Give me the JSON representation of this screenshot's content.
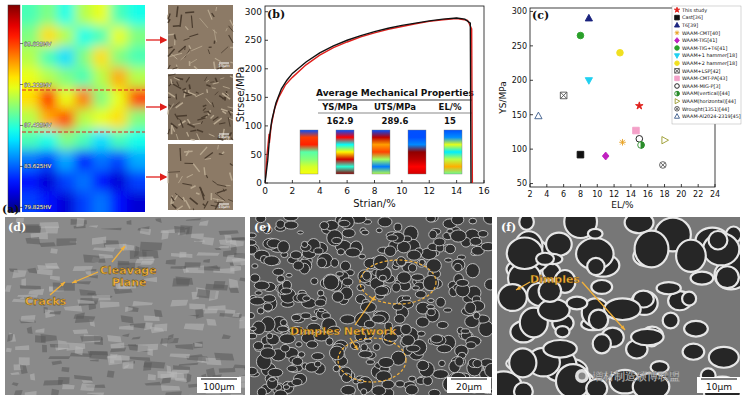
{
  "figure": {
    "panel_labels": [
      "(a)",
      "(b)",
      "(c)",
      "(d)",
      "(e)",
      "(f)"
    ],
    "a": {
      "colorbar": {
        "range": [
          79.4,
          98.6
        ],
        "ticks": [
          {
            "value": 95.025,
            "label": "95.025HV"
          },
          {
            "value": 91.225,
            "label": "91.225HV"
          },
          {
            "value": 87.425,
            "label": "87.425HV"
          },
          {
            "value": 83.625,
            "label": "83.625HV"
          },
          {
            "value": 79.825,
            "label": "79.825HV"
          }
        ]
      },
      "hardness": [
        [
          88,
          89,
          87,
          90,
          91,
          88,
          87
        ],
        [
          89,
          92,
          90,
          87,
          88,
          91,
          89
        ],
        [
          90,
          88,
          86,
          89,
          92,
          89,
          88
        ],
        [
          91,
          90,
          89,
          88,
          90,
          93,
          90
        ],
        [
          92,
          96,
          91,
          94,
          89,
          91,
          95
        ],
        [
          90,
          93,
          95,
          90,
          91,
          92,
          89
        ],
        [
          88,
          87,
          89,
          88,
          86,
          88,
          87
        ],
        [
          84,
          83,
          85,
          82,
          84,
          83,
          85
        ],
        [
          82,
          81,
          83,
          84,
          82,
          81,
          83
        ],
        [
          83,
          82,
          81,
          83,
          84,
          82,
          81
        ]
      ],
      "scale_bars": [
        "10μm",
        "10μm",
        "10μm"
      ]
    },
    "d": {
      "annotations": [
        "Cracks",
        "Cleavage Plane"
      ],
      "scale_bar": "100μm"
    },
    "e": {
      "annotations": [
        "Dimples Network"
      ],
      "scale_bar": "20μm"
    },
    "f": {
      "annotations": [
        "Dimples"
      ],
      "scale_bar": "10μm"
    },
    "watermark": "增材制造硕博联盟"
  },
  "chart_data": [
    {
      "type": "line",
      "x_label": "Strian/%",
      "y_label": "Strsee/MPa",
      "xlim": [
        0,
        16
      ],
      "xticks": [
        0,
        2,
        4,
        6,
        8,
        10,
        12,
        14,
        16
      ],
      "ylim": [
        0,
        310
      ],
      "yticks": [
        0,
        50,
        100,
        150,
        200,
        250,
        300
      ],
      "series": [
        {
          "color": "#e0201c",
          "x": [
            0,
            0.15,
            0.3,
            0.32,
            0.45,
            0.7,
            1,
            1.5,
            2,
            3,
            4,
            5,
            6,
            7,
            8,
            9,
            10,
            11,
            12,
            13,
            14,
            14.8,
            15.1,
            15.15
          ],
          "values": [
            0,
            50,
            86,
            70,
            100,
            130,
            150,
            172,
            185,
            207,
            224,
            237,
            247,
            256,
            263,
            269,
            274,
            279,
            283,
            286,
            288,
            285,
            270,
            0
          ]
        },
        {
          "color": "#111111",
          "x": [
            0,
            0.2,
            0.35,
            0.5,
            0.8,
            1.2,
            1.6,
            2,
            3,
            4,
            5,
            6,
            7,
            8,
            9,
            10,
            11,
            12,
            13,
            14,
            14.6,
            15,
            15.05
          ],
          "values": [
            0,
            40,
            85,
            110,
            140,
            165,
            180,
            192,
            212,
            228,
            240,
            250,
            258,
            265,
            271,
            276,
            280,
            284,
            287,
            289,
            287,
            280,
            0
          ]
        }
      ],
      "table": {
        "title": "Average Mechanical Properties",
        "columns": [
          "YS/MPa",
          "UTS/MPa",
          "EL/%"
        ],
        "values": [
          162.9,
          289.6,
          15
        ]
      }
    },
    {
      "type": "scatter",
      "x_label": "EL/%",
      "y_label": "YS/MPa",
      "xlim": [
        2,
        24
      ],
      "xticks": [
        2,
        4,
        6,
        8,
        10,
        12,
        14,
        16,
        18,
        20,
        22,
        24
      ],
      "ylim": [
        45,
        305
      ],
      "yticks": [
        50,
        100,
        150,
        200,
        250,
        300
      ],
      "legend": "upper right",
      "series": [
        {
          "name": "This study",
          "color": "#e0201c",
          "marker": "star",
          "x": [
            15
          ],
          "values": [
            162.9
          ]
        },
        {
          "name": "Cast[36]",
          "color": "#111111",
          "marker": "square",
          "x": [
            8
          ],
          "values": [
            92
          ]
        },
        {
          "name": "T6[39]",
          "color": "#1a237e",
          "marker": "triangle",
          "x": [
            9
          ],
          "values": [
            290
          ]
        },
        {
          "name": "WAAM-CMT[40]",
          "color": "#e8a020",
          "marker": "asterisk",
          "x": [
            13
          ],
          "values": [
            110
          ]
        },
        {
          "name": "WAAM-TIG[41]",
          "color": "#c020c0",
          "marker": "diamond",
          "x": [
            11
          ],
          "values": [
            90
          ]
        },
        {
          "name": "WAAM-TIG+T6[41]",
          "color": "#2aa02a",
          "marker": "circle",
          "x": [
            8
          ],
          "values": [
            265
          ]
        },
        {
          "name": "WAAM+1 hammer[18]",
          "color": "#20d0f0",
          "marker": "triangle_down",
          "x": [
            9
          ],
          "values": [
            200
          ]
        },
        {
          "name": "WAAM+2 hammer[18]",
          "color": "#f0e020",
          "marker": "circle",
          "x": [
            12.7
          ],
          "values": [
            240
          ]
        },
        {
          "name": "WAAM+LSP[42]",
          "color": "#555555",
          "marker": "square_x",
          "x": [
            6
          ],
          "values": [
            178
          ]
        },
        {
          "name": "WAAM-CMT-PA[43]",
          "color": "#f4a0c8",
          "marker": "square",
          "x": [
            14.6
          ],
          "values": [
            127
          ]
        },
        {
          "name": "WAAM-MIG-P[3]",
          "color": "#111111",
          "marker": "circle_open",
          "x": [
            15
          ],
          "values": [
            115
          ]
        },
        {
          "name": "WAAM(vertical)[44]",
          "color": "#2a8c2a",
          "marker": "circle_half",
          "x": [
            15.2
          ],
          "values": [
            106
          ]
        },
        {
          "name": "WAAM(horizontal)[44]",
          "color": "#9a9a2a",
          "marker": "triangle_right_open",
          "x": [
            18
          ],
          "values": [
            113
          ]
        },
        {
          "name": "Wrought(1351)[44]",
          "color": "#555555",
          "marker": "circle_x",
          "x": [
            17.8
          ],
          "values": [
            77
          ]
        },
        {
          "name": "WAAM-Al2024-2319[45]",
          "color": "#3a5a8a",
          "marker": "triangle_open",
          "x": [
            3
          ],
          "values": [
            148
          ]
        }
      ]
    }
  ]
}
